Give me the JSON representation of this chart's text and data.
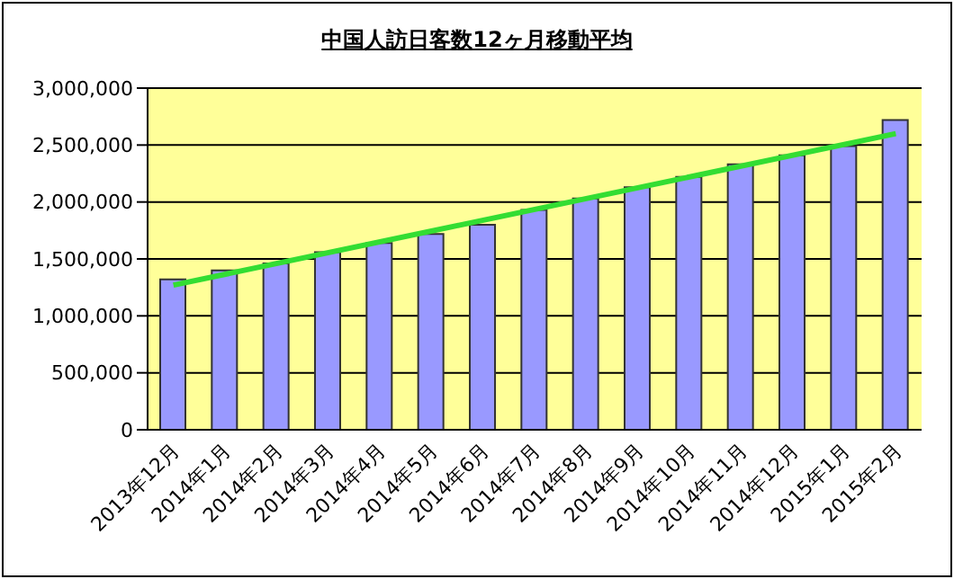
{
  "chart_data": {
    "type": "bar",
    "title": "中国人訪日客数12ヶ月移動平均",
    "categories": [
      "2013年12月",
      "2014年1月",
      "2014年2月",
      "2014年3月",
      "2014年4月",
      "2014年5月",
      "2014年6月",
      "2014年7月",
      "2014年8月",
      "2014年9月",
      "2014年10月",
      "2014年11月",
      "2014年12月",
      "2015年1月",
      "2015年2月"
    ],
    "series": [
      {
        "color": "#9999ff",
        "values": [
          1320000,
          1400000,
          1460000,
          1560000,
          1640000,
          1720000,
          1800000,
          1930000,
          2030000,
          2130000,
          2220000,
          2330000,
          2410000,
          2490000,
          2720000
        ]
      },
      {
        "type": "line",
        "color": "#33dd33",
        "values": [
          1270000,
          null,
          null,
          null,
          null,
          null,
          null,
          null,
          null,
          null,
          null,
          null,
          null,
          null,
          2600000
        ]
      }
    ],
    "ylim": [
      0,
      3000000
    ],
    "yticks": [
      0,
      {
        "value": 500000,
        "label": "500,000"
      },
      {
        "value": 1000000,
        "label": "1,000,000"
      },
      {
        "value": 1500000,
        "label": "1,500,000"
      },
      {
        "value": 2000000,
        "label": "2,000,000"
      },
      {
        "value": 2500000,
        "label": "2,500,000"
      },
      {
        "value": 3000000,
        "label": "3,000,000"
      }
    ],
    "grid": "y",
    "legend": false
  }
}
